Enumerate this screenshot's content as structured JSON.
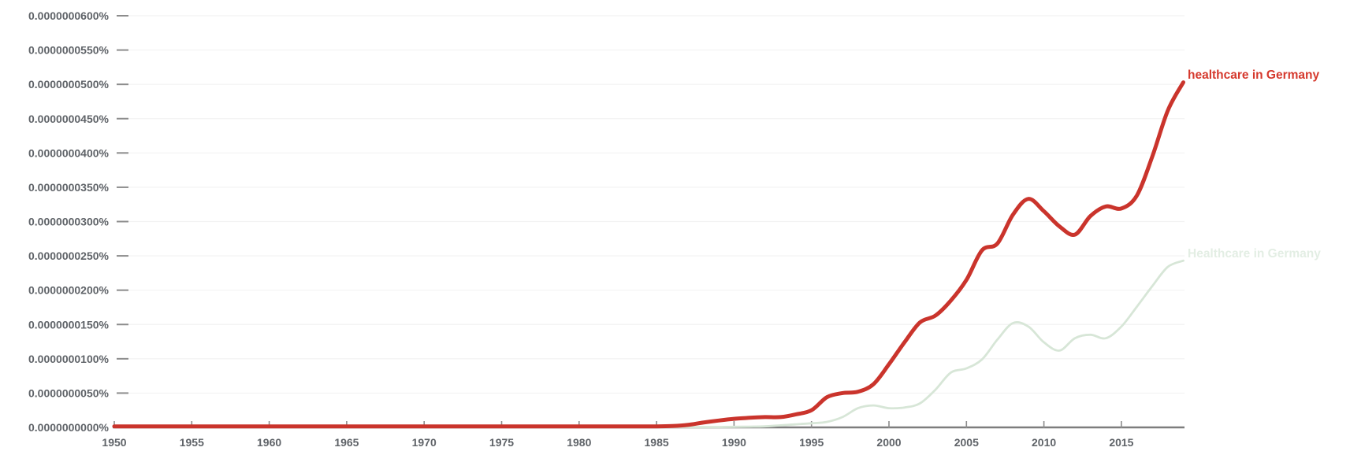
{
  "chart_data": {
    "type": "line",
    "value_unit": "percent × 1e-10 (label 0.0000000050% = 0.5 on this scale ×10)",
    "xlim": [
      1950,
      2019
    ],
    "ylim": [
      0,
      60
    ],
    "grid": true,
    "legend_position": "right-of-line-end",
    "x_ticks": [
      1950,
      1955,
      1960,
      1965,
      1970,
      1975,
      1980,
      1985,
      1990,
      1995,
      2000,
      2005,
      2010,
      2015
    ],
    "y_axis": {
      "ticks": [
        {
          "value": 0,
          "label": "0.0000000000%"
        },
        {
          "value": 5,
          "label": "0.0000000050%"
        },
        {
          "value": 10,
          "label": "0.0000000100%"
        },
        {
          "value": 15,
          "label": "0.0000000150%"
        },
        {
          "value": 20,
          "label": "0.0000000200%"
        },
        {
          "value": 25,
          "label": "0.0000000250%"
        },
        {
          "value": 30,
          "label": "0.0000000300%"
        },
        {
          "value": 35,
          "label": "0.0000000350%"
        },
        {
          "value": 40,
          "label": "0.0000000400%"
        },
        {
          "value": 45,
          "label": "0.0000000450%"
        },
        {
          "value": 50,
          "label": "0.0000000500%"
        },
        {
          "value": 55,
          "label": "0.0000000550%"
        },
        {
          "value": 60,
          "label": "0.0000000600%"
        }
      ]
    },
    "x": [
      1950,
      1951,
      1952,
      1953,
      1954,
      1955,
      1956,
      1957,
      1958,
      1959,
      1960,
      1961,
      1962,
      1963,
      1964,
      1965,
      1966,
      1967,
      1968,
      1969,
      1970,
      1971,
      1972,
      1973,
      1974,
      1975,
      1976,
      1977,
      1978,
      1979,
      1980,
      1981,
      1982,
      1983,
      1984,
      1985,
      1986,
      1987,
      1988,
      1989,
      1990,
      1991,
      1992,
      1993,
      1994,
      1995,
      1996,
      1997,
      1998,
      1999,
      2000,
      2001,
      2002,
      2003,
      2004,
      2005,
      2006,
      2007,
      2008,
      2009,
      2010,
      2011,
      2012,
      2013,
      2014,
      2015,
      2016,
      2017,
      2018,
      2019
    ],
    "series": [
      {
        "id": "healthcare-lowercase",
        "name": "healthcare in Germany",
        "color": "#ca342c",
        "label_color": "#d5392d",
        "stroke_width": 5,
        "values": [
          0.15,
          0.15,
          0.15,
          0.15,
          0.15,
          0.15,
          0.15,
          0.15,
          0.15,
          0.15,
          0.15,
          0.15,
          0.15,
          0.15,
          0.15,
          0.15,
          0.15,
          0.15,
          0.15,
          0.15,
          0.15,
          0.15,
          0.15,
          0.15,
          0.15,
          0.15,
          0.15,
          0.15,
          0.15,
          0.15,
          0.15,
          0.15,
          0.15,
          0.15,
          0.15,
          0.15,
          0.2,
          0.35,
          0.7,
          1.0,
          1.25,
          1.4,
          1.5,
          1.5,
          1.9,
          2.5,
          4.4,
          5.0,
          5.2,
          6.3,
          9.2,
          12.4,
          15.3,
          16.3,
          18.5,
          21.5,
          25.8,
          26.8,
          31.0,
          33.3,
          31.5,
          29.3,
          28.1,
          30.8,
          32.2,
          31.9,
          33.8,
          39.5,
          46.2,
          50.3
        ]
      },
      {
        "id": "healthcare-capitalized",
        "name": "Healthcare in Germany",
        "color": "#d7e6d7",
        "label_color": "#e3eee4",
        "stroke_width": 2.8,
        "values": [
          0.05,
          0.05,
          0.05,
          0.05,
          0.05,
          0.05,
          0.05,
          0.05,
          0.05,
          0.05,
          0.05,
          0.05,
          0.05,
          0.05,
          0.05,
          0.05,
          0.05,
          0.05,
          0.05,
          0.05,
          0.05,
          0.05,
          0.05,
          0.05,
          0.05,
          0.05,
          0.05,
          0.05,
          0.05,
          0.05,
          0.05,
          0.05,
          0.05,
          0.05,
          0.05,
          0.05,
          0.05,
          0.05,
          0.05,
          0.05,
          0.08,
          0.1,
          0.15,
          0.3,
          0.45,
          0.6,
          0.8,
          1.5,
          2.8,
          3.2,
          2.8,
          2.9,
          3.5,
          5.5,
          8.0,
          8.6,
          9.9,
          12.8,
          15.2,
          14.7,
          12.4,
          11.2,
          13.0,
          13.5,
          13.0,
          14.7,
          17.6,
          20.6,
          23.4,
          24.3
        ]
      }
    ],
    "style": {
      "axis_color": "#7d7d7d",
      "tick_color": "#8c8c8c",
      "axis_label_color": "#5f6368",
      "grid_color": "#f2f2f2",
      "background": "#ffffff"
    }
  }
}
